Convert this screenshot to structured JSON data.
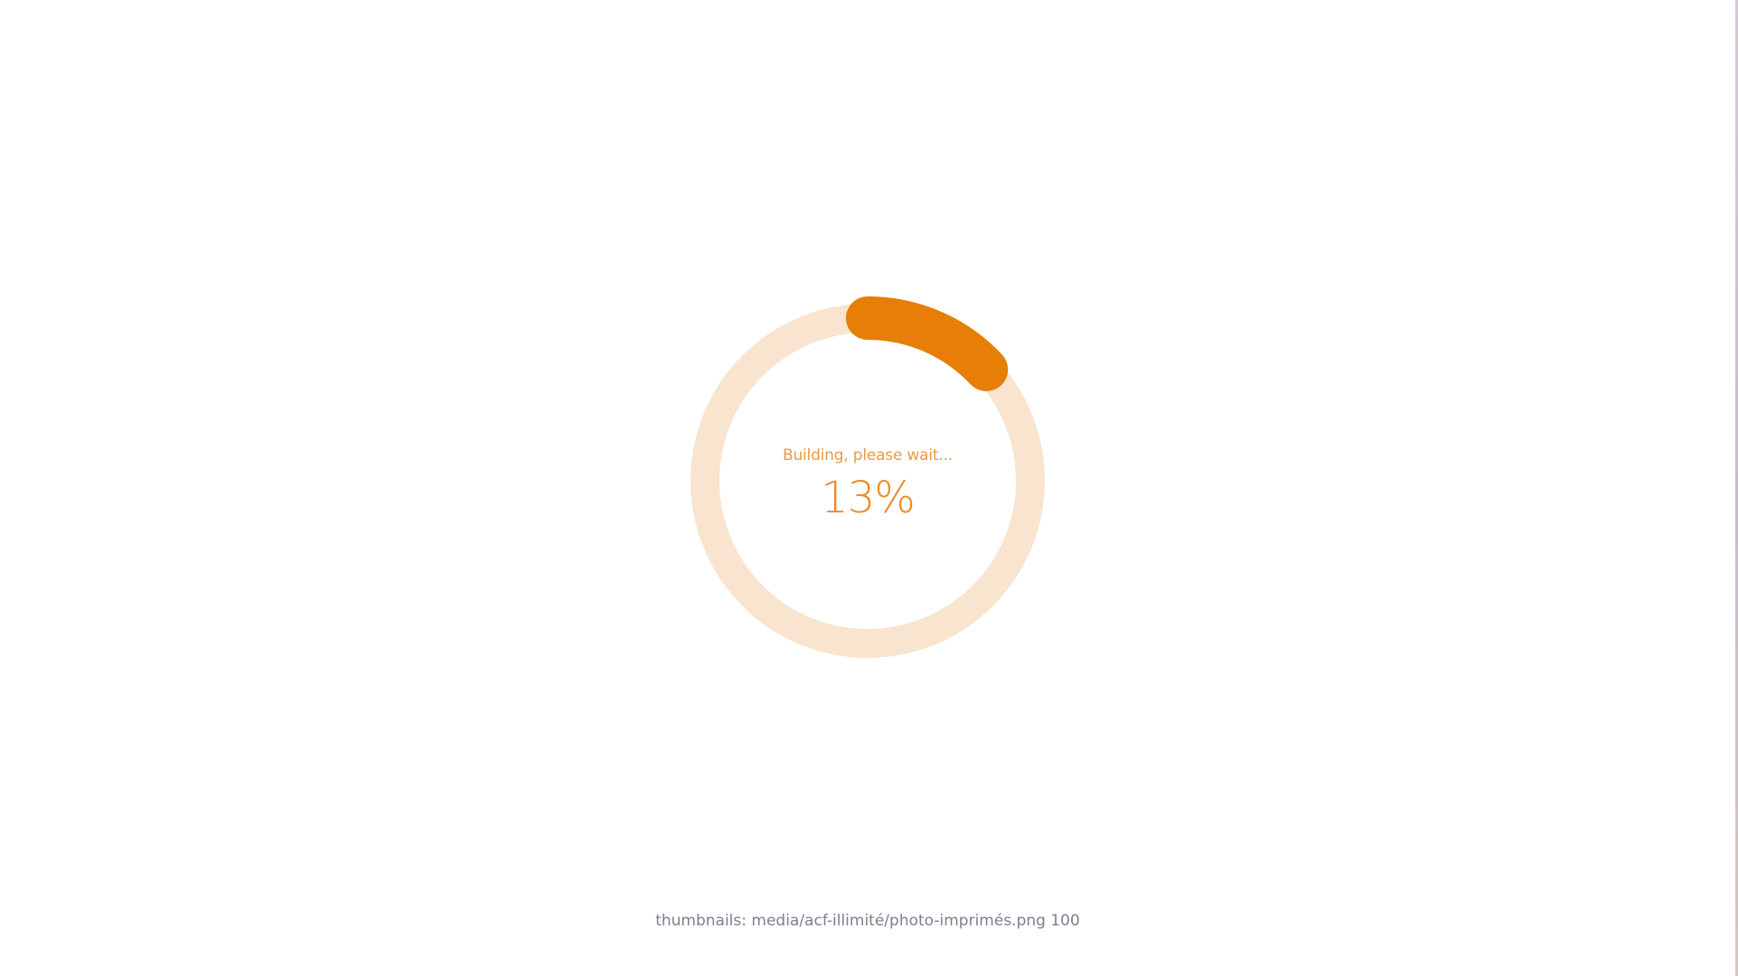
{
  "loader": {
    "label": "Building, please wait...",
    "percent_text": "13%",
    "progress": 0.13,
    "colors": {
      "track": "#f8e4cf",
      "fill": "#e67e07"
    }
  },
  "status": {
    "text": "thumbnails: media/acf-illimité/photo-imprimés.png 100"
  }
}
